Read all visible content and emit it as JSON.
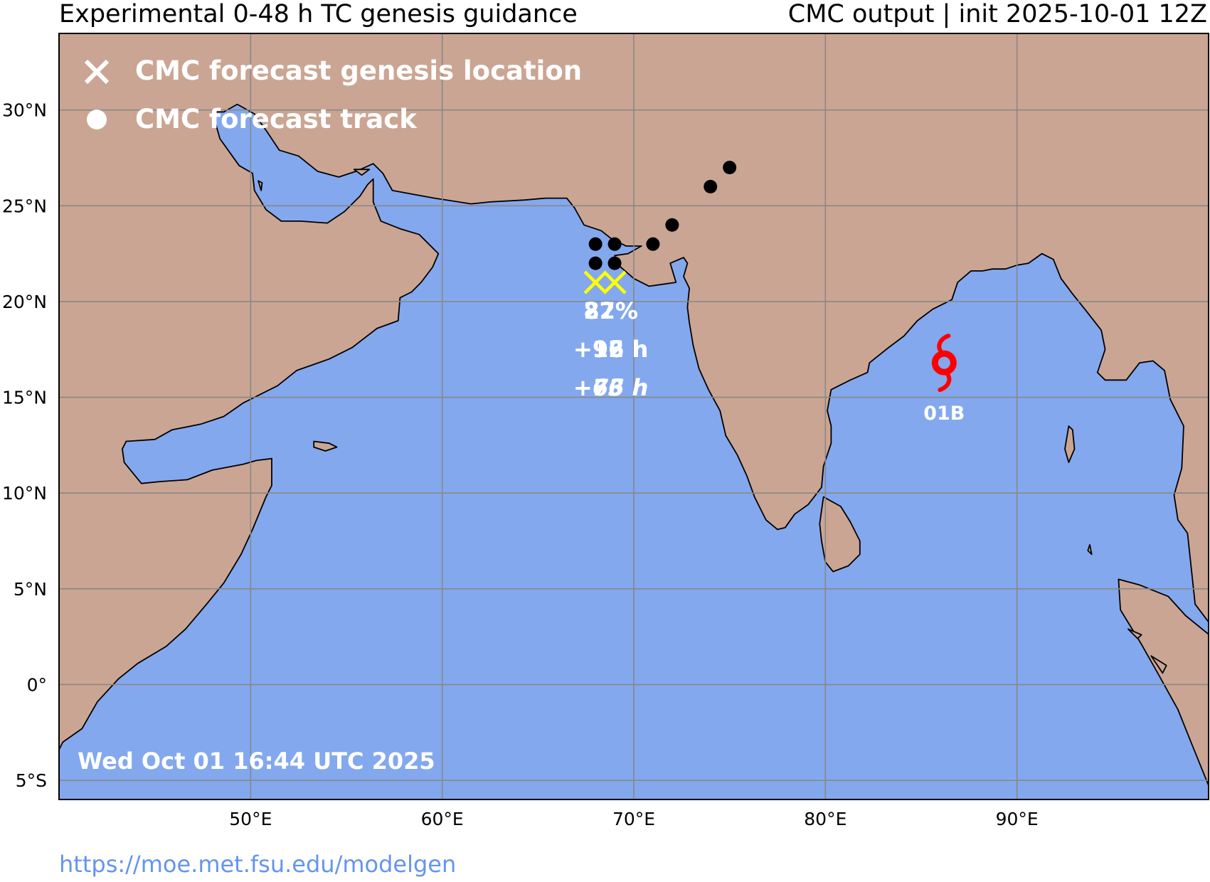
{
  "header": {
    "title_left": "Experimental 0-48 h TC genesis guidance",
    "title_right": "CMC output | init 2025-10-01 12Z"
  },
  "colors": {
    "ocean": "#83a8ee",
    "land": "#cba593",
    "genesis_marker": "#ffff00",
    "track_dot": "#000000",
    "storm_symbol": "#ff0000",
    "label_text": "#ffffff",
    "url_text": "#6495ed"
  },
  "map": {
    "extent": {
      "lon_min": 40,
      "lon_max": 100,
      "lat_min": -6,
      "lat_max": 34
    },
    "lat_ticks": [
      {
        "lat": 30,
        "label": "30°N"
      },
      {
        "lat": 25,
        "label": "25°N"
      },
      {
        "lat": 20,
        "label": "20°N"
      },
      {
        "lat": 15,
        "label": "15°N"
      },
      {
        "lat": 10,
        "label": "10°N"
      },
      {
        "lat": 5,
        "label": "5°N"
      },
      {
        "lat": 0,
        "label": "0°"
      },
      {
        "lat": -5,
        "label": "5°S"
      }
    ],
    "lon_ticks": [
      {
        "lon": 50,
        "label": "50°E"
      },
      {
        "lon": 60,
        "label": "60°E"
      },
      {
        "lon": 70,
        "label": "70°E"
      },
      {
        "lon": 80,
        "label": "80°E"
      },
      {
        "lon": 90,
        "label": "90°E"
      }
    ]
  },
  "legend": {
    "genesis_label": "CMC forecast genesis location",
    "track_label": "CMC forecast track",
    "genesis_icon": "x-marker-icon",
    "track_icon": "filled-circle-icon"
  },
  "genesis_points": [
    {
      "lon": 68.0,
      "lat": 21.0
    },
    {
      "lon": 69.0,
      "lat": 21.0
    }
  ],
  "genesis_labels": [
    {
      "lon": 68.8,
      "lat": 19.1,
      "line1": "82%",
      "line2": "+96 h",
      "line3": "+76 h"
    },
    {
      "lon": 68.8,
      "lat": 19.1,
      "line1": "27%",
      "line2": "+12 h",
      "line3": "+63 h"
    }
  ],
  "track_points": [
    {
      "lon": 68.0,
      "lat": 23.0
    },
    {
      "lon": 69.0,
      "lat": 23.0
    },
    {
      "lon": 68.0,
      "lat": 22.0
    },
    {
      "lon": 69.0,
      "lat": 22.0
    },
    {
      "lon": 71.0,
      "lat": 23.0
    },
    {
      "lon": 72.0,
      "lat": 24.0
    },
    {
      "lon": 74.0,
      "lat": 26.0
    },
    {
      "lon": 75.0,
      "lat": 27.0
    }
  ],
  "storms": [
    {
      "name": "01B",
      "lon": 86.2,
      "lat": 16.8,
      "icon": "tropical-cyclone-icon"
    }
  ],
  "timestamp": "Wed Oct 01 16:44 UTC 2025",
  "footer": {
    "url": "https://moe.met.fsu.edu/modelgen"
  }
}
